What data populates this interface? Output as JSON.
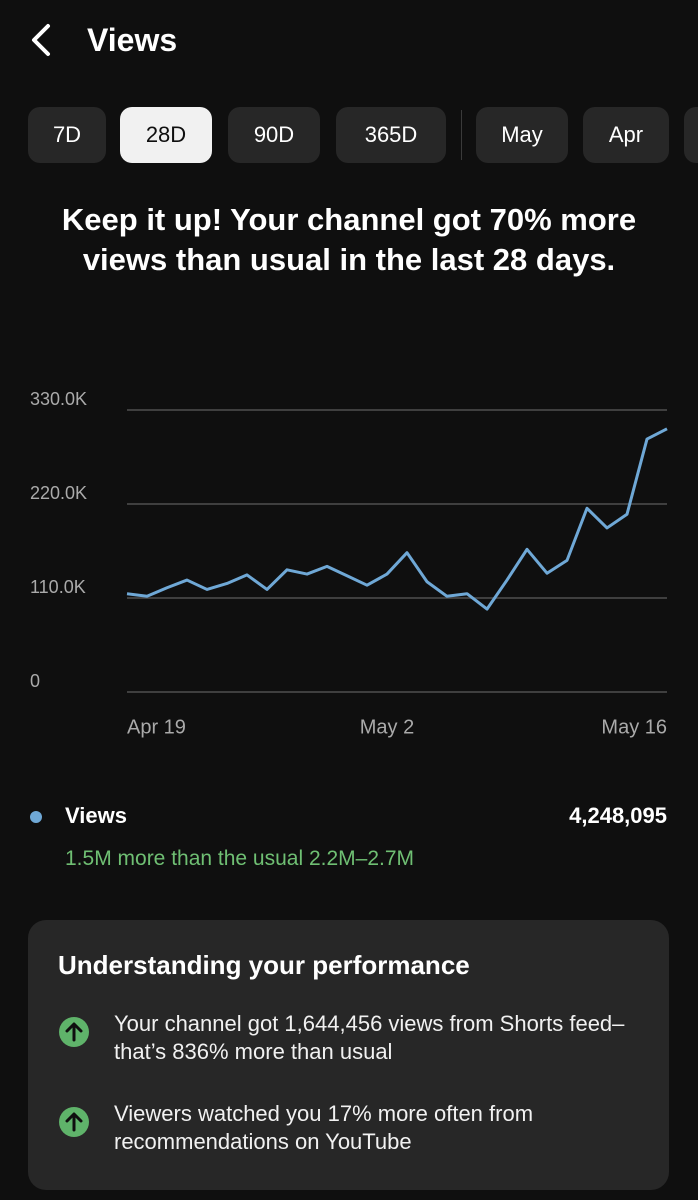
{
  "header": {
    "title": "Views"
  },
  "tabs": {
    "items": [
      "7D",
      "28D",
      "90D",
      "365D",
      "May",
      "Apr"
    ],
    "active": 1
  },
  "headline": "Keep it up! Your channel got 70% more views than usual in the last 28 days.",
  "chart_data": {
    "type": "line",
    "categories": [
      "Apr 19",
      null,
      null,
      null,
      null,
      null,
      null,
      null,
      null,
      null,
      null,
      null,
      null,
      "May 2",
      null,
      null,
      null,
      null,
      null,
      null,
      null,
      null,
      null,
      null,
      null,
      null,
      null,
      "May 16"
    ],
    "series": [
      {
        "name": "Views",
        "color": "#6fa8d6",
        "values": [
          115000,
          112000,
          122000,
          131000,
          120000,
          127000,
          137000,
          120000,
          143000,
          138000,
          147000,
          136000,
          125000,
          138000,
          163000,
          129000,
          112000,
          115000,
          97000,
          131000,
          167000,
          139000,
          154000,
          215000,
          192000,
          208000,
          296000,
          308000
        ]
      }
    ],
    "ylim": [
      0,
      330000
    ],
    "yticks": [
      0,
      {
        "value": 110000,
        "label": "110.0K"
      },
      {
        "value": 220000,
        "label": "220.0K"
      },
      {
        "value": 330000,
        "label": "330.0K"
      }
    ],
    "grid": true
  },
  "legend": {
    "total": "4,248,095",
    "note": "1.5M more than the usual 2.2M–2.7M"
  },
  "card": {
    "title": "Understanding your performance",
    "items": [
      "Your channel got 1,644,456 views from Shorts feed–that’s 836% more than usual",
      "Viewers watched you 17% more often from recommendations on YouTube"
    ]
  }
}
